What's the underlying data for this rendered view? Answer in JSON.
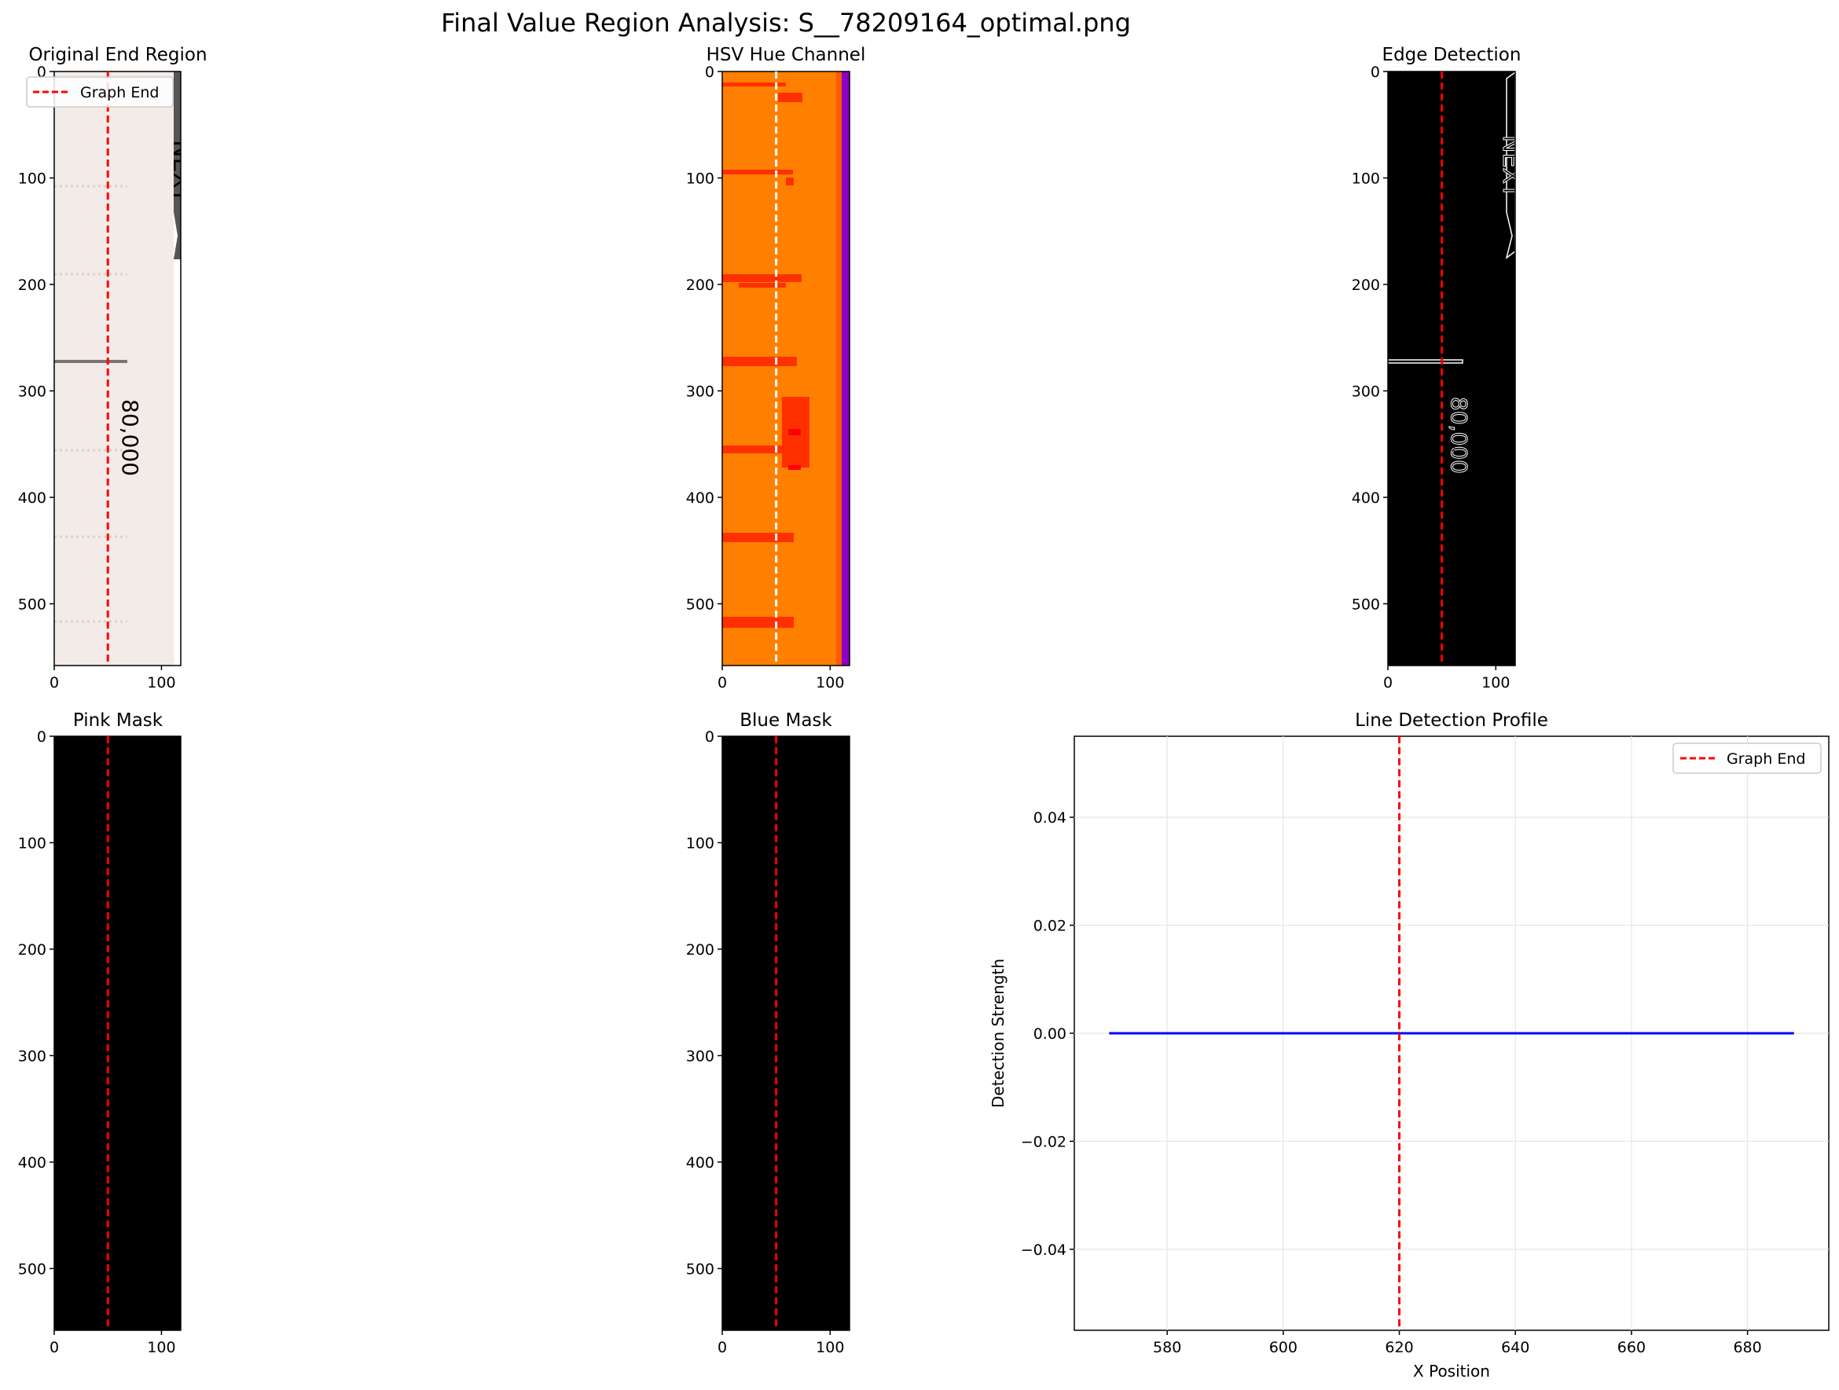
{
  "figure": {
    "title": "Final Value Region Analysis: S__78209164_optimal.png"
  },
  "colors": {
    "graph_end_line": "#ff0000",
    "hue_line": "#ffffff",
    "profile_line": "#0000ff",
    "hue_base": "#ff7f00",
    "hue_red": "#ff3000",
    "hue_purple": "#8a00c8",
    "paper": "#f2ebe7",
    "mask_bg": "#000000"
  },
  "panels": {
    "original": {
      "title": "Original End Region",
      "legend": "Graph End"
    },
    "hue": {
      "title": "HSV Hue Channel"
    },
    "edge": {
      "title": "Edge Detection"
    },
    "pink": {
      "title": "Pink Mask"
    },
    "blue": {
      "title": "Blue Mask"
    },
    "profile": {
      "title": "Line Detection Profile",
      "legend": "Graph End"
    }
  },
  "image_text": {
    "value_label": "80,000",
    "edge_value_label": "80,000"
  },
  "chart_data": [
    {
      "type": "heatmap",
      "title": "Original End Region",
      "x_ticks": [
        0,
        100
      ],
      "y_ticks": [
        0,
        100,
        200,
        300,
        400,
        500
      ],
      "xlim": [
        0,
        118
      ],
      "ylim": [
        558,
        0
      ],
      "graph_end_x": 50,
      "legend": [
        "Graph End"
      ],
      "legend_loc": "upper left"
    },
    {
      "type": "heatmap",
      "title": "HSV Hue Channel",
      "x_ticks": [
        0,
        100
      ],
      "y_ticks": [
        0,
        100,
        200,
        300,
        400,
        500
      ],
      "xlim": [
        0,
        118
      ],
      "ylim": [
        558,
        0
      ],
      "graph_end_x": 50
    },
    {
      "type": "heatmap",
      "title": "Edge Detection",
      "x_ticks": [
        0,
        100
      ],
      "y_ticks": [
        0,
        100,
        200,
        300,
        400,
        500
      ],
      "xlim": [
        0,
        118
      ],
      "ylim": [
        558,
        0
      ],
      "graph_end_x": 50
    },
    {
      "type": "heatmap",
      "title": "Pink Mask",
      "x_ticks": [
        0,
        100
      ],
      "y_ticks": [
        0,
        100,
        200,
        300,
        400,
        500
      ],
      "xlim": [
        0,
        118
      ],
      "ylim": [
        558,
        0
      ],
      "graph_end_x": 50
    },
    {
      "type": "heatmap",
      "title": "Blue Mask",
      "x_ticks": [
        0,
        100
      ],
      "y_ticks": [
        0,
        100,
        200,
        300,
        400,
        500
      ],
      "xlim": [
        0,
        118
      ],
      "ylim": [
        558,
        0
      ],
      "graph_end_x": 50
    },
    {
      "type": "line",
      "title": "Line Detection Profile",
      "xlabel": "X Position",
      "ylabel": "Detection Strength",
      "xlim": [
        564,
        694
      ],
      "ylim": [
        -0.055,
        0.055
      ],
      "x_ticks": [
        580,
        600,
        620,
        640,
        660,
        680
      ],
      "y_ticks": [
        -0.04,
        -0.02,
        0.0,
        0.02,
        0.04
      ],
      "y_tick_labels": [
        "−0.04",
        "−0.02",
        "0.00",
        "0.02",
        "0.04"
      ],
      "series": [
        {
          "x": [
            570,
            688
          ],
          "y": [
            0.0,
            0.0
          ]
        }
      ],
      "graph_end_x": 620,
      "legend": [
        "Graph End"
      ],
      "legend_loc": "upper right",
      "grid": true
    }
  ]
}
